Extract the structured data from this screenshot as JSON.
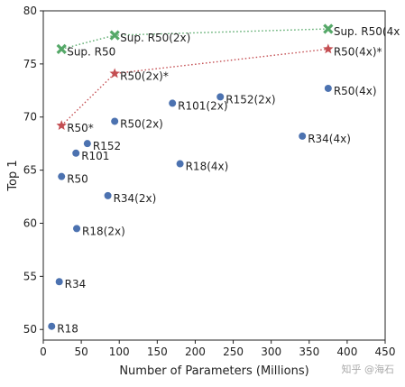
{
  "chart_data": {
    "type": "scatter",
    "xlabel": "Number of Parameters (Millions)",
    "ylabel": "Top 1",
    "xlim": [
      0,
      450
    ],
    "ylim": [
      49,
      80
    ],
    "xticks": [
      0,
      50,
      100,
      150,
      200,
      250,
      300,
      350,
      400,
      450
    ],
    "yticks": [
      50,
      55,
      60,
      65,
      70,
      75,
      80
    ],
    "grid": false,
    "colors": {
      "blue": "#4c72b0",
      "red": "#c44e52",
      "green": "#55a868"
    },
    "points": [
      {
        "label": "R18",
        "x": 11,
        "y": 50.3,
        "marker": "circle",
        "color": "blue"
      },
      {
        "label": "R34",
        "x": 21,
        "y": 54.5,
        "marker": "circle",
        "color": "blue"
      },
      {
        "label": "R18(2x)",
        "x": 44,
        "y": 59.5,
        "marker": "circle",
        "color": "blue"
      },
      {
        "label": "R50",
        "x": 24,
        "y": 64.4,
        "marker": "circle",
        "color": "blue"
      },
      {
        "label": "R101",
        "x": 43,
        "y": 66.6,
        "marker": "circle",
        "color": "blue"
      },
      {
        "label": "R152",
        "x": 58,
        "y": 67.5,
        "marker": "circle",
        "color": "blue"
      },
      {
        "label": "R34(2x)",
        "x": 85,
        "y": 62.6,
        "marker": "circle",
        "color": "blue"
      },
      {
        "label": "R50(2x)",
        "x": 94,
        "y": 69.6,
        "marker": "circle",
        "color": "blue"
      },
      {
        "label": "R101(2x)",
        "x": 170,
        "y": 71.3,
        "marker": "circle",
        "color": "blue"
      },
      {
        "label": "R18(4x)",
        "x": 180,
        "y": 65.6,
        "marker": "circle",
        "color": "blue"
      },
      {
        "label": "R152(2x)",
        "x": 233,
        "y": 71.9,
        "marker": "circle",
        "color": "blue"
      },
      {
        "label": "R34(4x)",
        "x": 341,
        "y": 68.2,
        "marker": "circle",
        "color": "blue"
      },
      {
        "label": "R50(4x)",
        "x": 375,
        "y": 72.7,
        "marker": "circle",
        "color": "blue"
      }
    ],
    "series": [
      {
        "marker": "star",
        "color": "red",
        "line": "dotted",
        "points": [
          {
            "label": "R50*",
            "x": 24,
            "y": 69.2
          },
          {
            "label": "R50(2x)*",
            "x": 94,
            "y": 74.1
          },
          {
            "label": "R50(4x)*",
            "x": 375,
            "y": 76.4
          }
        ]
      },
      {
        "marker": "cross",
        "color": "green",
        "line": "dotted",
        "points": [
          {
            "label": "Sup. R50",
            "x": 24,
            "y": 76.4
          },
          {
            "label": "Sup. R50(2x)",
            "x": 94,
            "y": 77.7
          },
          {
            "label": "Sup. R50(4x",
            "x": 375,
            "y": 78.3
          }
        ]
      }
    ]
  },
  "watermark": "知乎 @海石"
}
